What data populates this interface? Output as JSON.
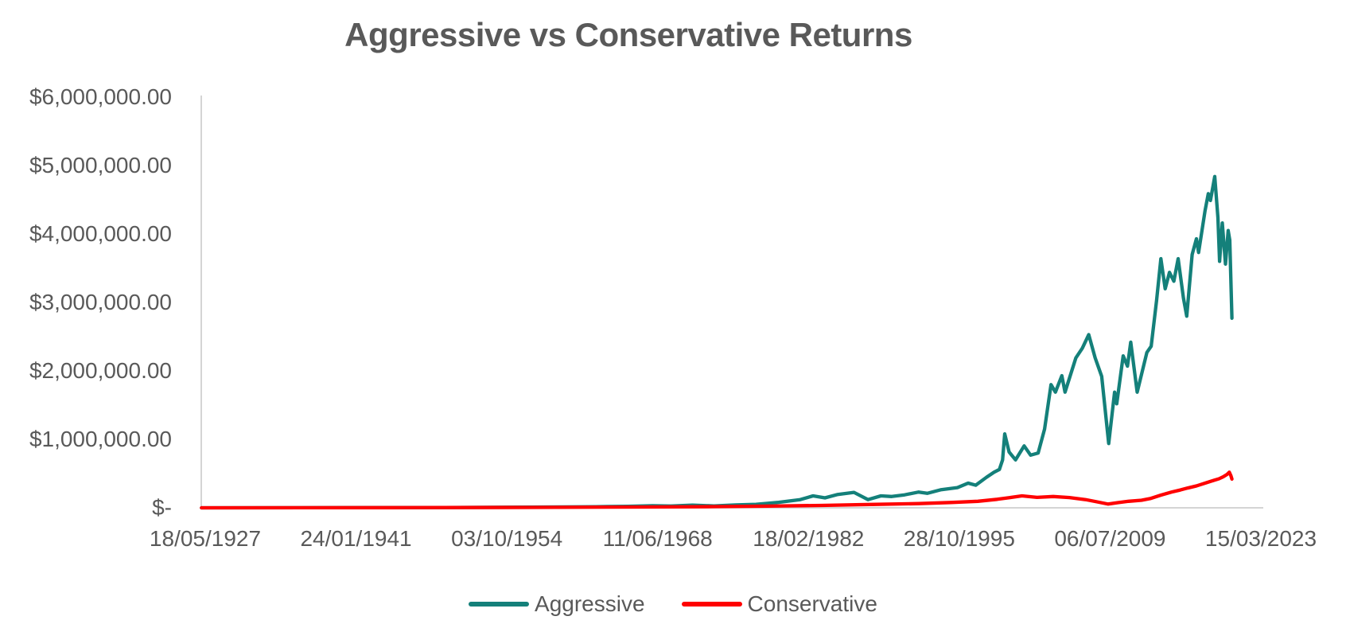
{
  "chart_data": {
    "type": "line",
    "title": "Aggressive vs Conservative Returns",
    "xlabel": "",
    "ylabel": "",
    "grid": false,
    "legend_position": "bottom",
    "background": "#ffffff",
    "text_color": "#595959",
    "axis_line_color": "#d4d4d4",
    "x_axis": {
      "type": "date",
      "tick_labels": [
        "18/05/1927",
        "24/01/1941",
        "03/10/1954",
        "11/06/1968",
        "18/02/1982",
        "28/10/1995",
        "06/07/2009",
        "15/03/2023"
      ]
    },
    "y_axis": {
      "min": 0,
      "max": 6000000,
      "ticks": [
        {
          "label": "$6,000,000.00",
          "value": 6000000
        },
        {
          "label": "$5,000,000.00",
          "value": 5000000
        },
        {
          "label": "$4,000,000.00",
          "value": 4000000
        },
        {
          "label": "$3,000,000.00",
          "value": 3000000
        },
        {
          "label": "$2,000,000.00",
          "value": 2000000
        },
        {
          "label": "$1,000,000.00",
          "value": 1000000
        },
        {
          "label": "$-",
          "value": 0
        }
      ]
    },
    "x_range_years": [
      1927.38,
      2023.2
    ],
    "series": [
      {
        "name": "Aggressive",
        "color": "#14807A",
        "points": [
          [
            1927.4,
            500
          ],
          [
            1940,
            2000
          ],
          [
            1950,
            5000
          ],
          [
            1958,
            9000
          ],
          [
            1964,
            16000
          ],
          [
            1967,
            22000
          ],
          [
            1969.3,
            30000
          ],
          [
            1971,
            26000
          ],
          [
            1973,
            38000
          ],
          [
            1975,
            28000
          ],
          [
            1977,
            42000
          ],
          [
            1978.9,
            50000
          ],
          [
            1981,
            80000
          ],
          [
            1983,
            120000
          ],
          [
            1984.2,
            175000
          ],
          [
            1985.3,
            145000
          ],
          [
            1986.5,
            195000
          ],
          [
            1988,
            225000
          ],
          [
            1989.3,
            120000
          ],
          [
            1990.5,
            175000
          ],
          [
            1991.5,
            165000
          ],
          [
            1992.7,
            190000
          ],
          [
            1994,
            230000
          ],
          [
            1994.8,
            212000
          ],
          [
            1996.1,
            265000
          ],
          [
            1997.6,
            295000
          ],
          [
            1998.6,
            360000
          ],
          [
            1999.3,
            330000
          ],
          [
            2000.3,
            445000
          ],
          [
            2001.0,
            520000
          ],
          [
            2001.5,
            560000
          ],
          [
            2001.8,
            700000
          ],
          [
            2002.0,
            1080000
          ],
          [
            2002.4,
            815000
          ],
          [
            2003.0,
            700000
          ],
          [
            2003.8,
            905000
          ],
          [
            2004.4,
            770000
          ],
          [
            2005.1,
            800000
          ],
          [
            2005.7,
            1150000
          ],
          [
            2006.3,
            1800000
          ],
          [
            2006.7,
            1690000
          ],
          [
            2007.3,
            1930000
          ],
          [
            2007.6,
            1690000
          ],
          [
            2008.6,
            2190000
          ],
          [
            2009.2,
            2330000
          ],
          [
            2009.8,
            2530000
          ],
          [
            2010.4,
            2190000
          ],
          [
            2011.0,
            1920000
          ],
          [
            2011.65,
            940000
          ],
          [
            2012.2,
            1690000
          ],
          [
            2012.4,
            1520000
          ],
          [
            2013.0,
            2220000
          ],
          [
            2013.4,
            2070000
          ],
          [
            2013.7,
            2420000
          ],
          [
            2014.3,
            1690000
          ],
          [
            2015.2,
            2270000
          ],
          [
            2015.6,
            2360000
          ],
          [
            2016.1,
            3030000
          ],
          [
            2016.5,
            3640000
          ],
          [
            2016.9,
            3200000
          ],
          [
            2017.3,
            3440000
          ],
          [
            2017.7,
            3310000
          ],
          [
            2018.1,
            3640000
          ],
          [
            2018.6,
            3060000
          ],
          [
            2018.9,
            2800000
          ],
          [
            2019.4,
            3700000
          ],
          [
            2019.8,
            3930000
          ],
          [
            2020.0,
            3730000
          ],
          [
            2020.6,
            4340000
          ],
          [
            2020.9,
            4590000
          ],
          [
            2021.1,
            4490000
          ],
          [
            2021.5,
            4840000
          ],
          [
            2021.8,
            4240000
          ],
          [
            2021.95,
            3600000
          ],
          [
            2022.2,
            4160000
          ],
          [
            2022.5,
            3560000
          ],
          [
            2022.75,
            4050000
          ],
          [
            2022.9,
            3910000
          ],
          [
            2023.1,
            2770000
          ]
        ]
      },
      {
        "name": "Conservative",
        "color": "#FF0000",
        "points": [
          [
            1927.4,
            300
          ],
          [
            1945,
            2000
          ],
          [
            1958,
            6000
          ],
          [
            1968,
            12000
          ],
          [
            1975,
            18000
          ],
          [
            1980,
            25000
          ],
          [
            1985,
            35000
          ],
          [
            1990,
            50000
          ],
          [
            1994,
            62000
          ],
          [
            1997,
            78000
          ],
          [
            1999.5,
            95000
          ],
          [
            2001.3,
            125000
          ],
          [
            2002.5,
            150000
          ],
          [
            2003.6,
            175000
          ],
          [
            2005,
            152000
          ],
          [
            2006.5,
            165000
          ],
          [
            2008,
            150000
          ],
          [
            2009.5,
            120000
          ],
          [
            2010.5,
            90000
          ],
          [
            2011.6,
            55000
          ],
          [
            2012.5,
            75000
          ],
          [
            2013.5,
            95000
          ],
          [
            2014.7,
            110000
          ],
          [
            2015.5,
            135000
          ],
          [
            2016.5,
            185000
          ],
          [
            2017.5,
            230000
          ],
          [
            2018.3,
            260000
          ],
          [
            2019.0,
            290000
          ],
          [
            2019.8,
            320000
          ],
          [
            2020.7,
            365000
          ],
          [
            2021.4,
            400000
          ],
          [
            2021.9,
            425000
          ],
          [
            2022.3,
            455000
          ],
          [
            2022.65,
            490000
          ],
          [
            2022.85,
            520000
          ],
          [
            2023.0,
            470000
          ],
          [
            2023.1,
            420000
          ]
        ]
      }
    ]
  }
}
